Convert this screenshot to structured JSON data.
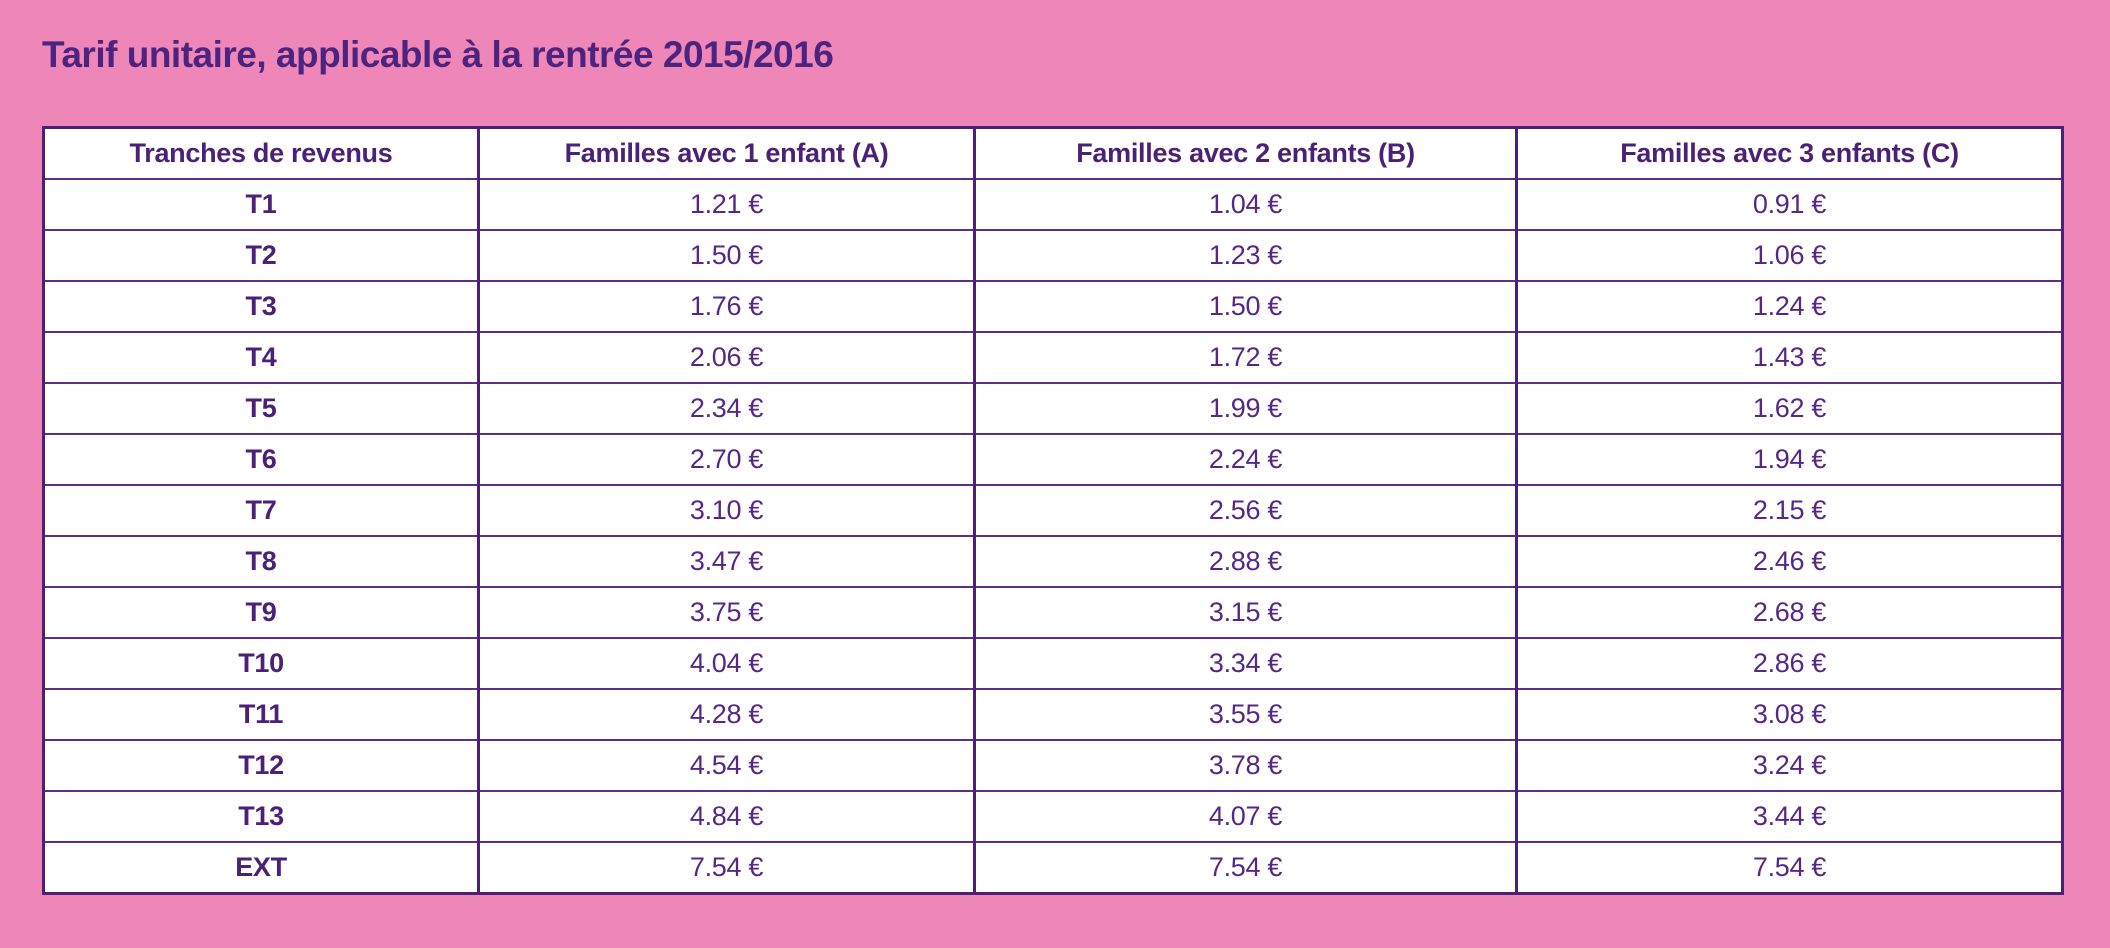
{
  "page": {
    "background_color": "#ee87b7",
    "text_color": "#4d2380",
    "border_color": "#4a2177"
  },
  "title": "Tarif unitaire, applicable à la rentrée 2015/2016",
  "table": {
    "columns": [
      "Tranches de revenus",
      "Familles avec 1 enfant (A)",
      "Familles avec 2 enfants (B)",
      "Familles avec 3 enfants (C)"
    ],
    "rows": [
      {
        "label": "T1",
        "values": [
          "1.21 €",
          "1.04 €",
          "0.91 €"
        ]
      },
      {
        "label": "T2",
        "values": [
          "1.50 €",
          "1.23 €",
          "1.06 €"
        ]
      },
      {
        "label": "T3",
        "values": [
          "1.76 €",
          "1.50 €",
          "1.24 €"
        ]
      },
      {
        "label": "T4",
        "values": [
          "2.06 €",
          "1.72 €",
          "1.43 €"
        ]
      },
      {
        "label": "T5",
        "values": [
          "2.34 €",
          "1.99 €",
          "1.62 €"
        ]
      },
      {
        "label": "T6",
        "values": [
          "2.70 €",
          "2.24 €",
          "1.94 €"
        ]
      },
      {
        "label": "T7",
        "values": [
          "3.10 €",
          "2.56 €",
          "2.15 €"
        ]
      },
      {
        "label": "T8",
        "values": [
          "3.47 €",
          "2.88 €",
          "2.46 €"
        ]
      },
      {
        "label": "T9",
        "values": [
          "3.75 €",
          "3.15 €",
          "2.68 €"
        ]
      },
      {
        "label": "T10",
        "values": [
          "4.04 €",
          "3.34 €",
          "2.86 €"
        ]
      },
      {
        "label": "T11",
        "values": [
          "4.28 €",
          "3.55 €",
          "3.08 €"
        ]
      },
      {
        "label": "T12",
        "values": [
          "4.54 €",
          "3.78 €",
          "3.24 €"
        ]
      },
      {
        "label": "T13",
        "values": [
          "4.84 €",
          "4.07 €",
          "3.44 €"
        ]
      },
      {
        "label": "EXT",
        "values": [
          "7.54 €",
          "7.54 €",
          "7.54 €"
        ]
      }
    ]
  },
  "chart_data": {
    "type": "table",
    "title": "Tarif unitaire, applicable à la rentrée 2015/2016",
    "categories": [
      "T1",
      "T2",
      "T3",
      "T4",
      "T5",
      "T6",
      "T7",
      "T8",
      "T9",
      "T10",
      "T11",
      "T12",
      "T13",
      "EXT"
    ],
    "series": [
      {
        "name": "Familles avec 1 enfant (A)",
        "values": [
          1.21,
          1.5,
          1.76,
          2.06,
          2.34,
          2.7,
          3.1,
          3.47,
          3.75,
          4.04,
          4.28,
          4.54,
          4.84,
          7.54
        ]
      },
      {
        "name": "Familles avec 2 enfants (B)",
        "values": [
          1.04,
          1.23,
          1.5,
          1.72,
          1.99,
          2.24,
          2.56,
          2.88,
          3.15,
          3.34,
          3.55,
          3.78,
          4.07,
          7.54
        ]
      },
      {
        "name": "Familles avec 3 enfants (C)",
        "values": [
          0.91,
          1.06,
          1.24,
          1.43,
          1.62,
          1.94,
          2.15,
          2.46,
          2.68,
          2.86,
          3.08,
          3.24,
          3.44,
          7.54
        ]
      }
    ],
    "unit": "€"
  }
}
